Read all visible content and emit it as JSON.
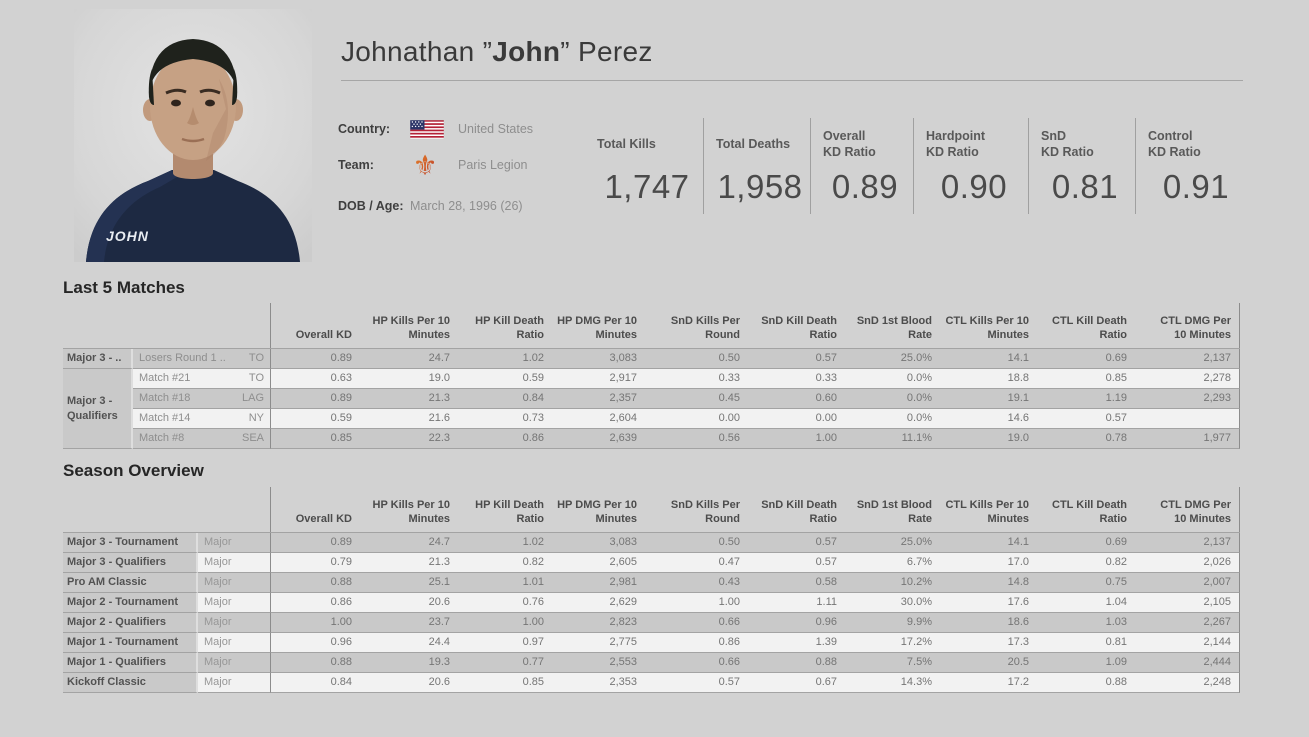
{
  "player": {
    "name_prefix": "Johnathan ”",
    "nickname_bold": "John",
    "name_suffix": "” Perez",
    "jersey_label": "JOHN"
  },
  "info": {
    "country_label": "Country:",
    "country_value": "United States",
    "country_icon": "us-flag-icon",
    "team_label": "Team:",
    "team_value": "Paris Legion",
    "team_icon": "fleur-de-lis-icon",
    "dob_label": "DOB / Age:",
    "dob_value": "March 28, 1996 (26)"
  },
  "stats": [
    {
      "label1": "Total Kills",
      "label2": "",
      "value": "1,747"
    },
    {
      "label1": "Total Deaths",
      "label2": "",
      "value": "1,958"
    },
    {
      "label1": "Overall",
      "label2": "KD Ratio",
      "value": "0.89"
    },
    {
      "label1": "Hardpoint",
      "label2": "KD Ratio",
      "value": "0.90"
    },
    {
      "label1": "SnD",
      "label2": "KD Ratio",
      "value": "0.81"
    },
    {
      "label1": "Control",
      "label2": "KD Ratio",
      "value": "0.91"
    }
  ],
  "sections": {
    "last5_title": "Last 5 Matches",
    "season_title": "Season Overview"
  },
  "columns": [
    {
      "line1": "",
      "line2": "Overall KD"
    },
    {
      "line1": "HP Kills Per 10",
      "line2": "Minutes"
    },
    {
      "line1": "HP Kill Death",
      "line2": "Ratio"
    },
    {
      "line1": "HP DMG Per 10",
      "line2": "Minutes"
    },
    {
      "line1": "SnD Kills Per",
      "line2": "Round"
    },
    {
      "line1": "SnD Kill Death",
      "line2": "Ratio"
    },
    {
      "line1": "SnD 1st Blood",
      "line2": "Rate"
    },
    {
      "line1": "CTL Kills Per 10",
      "line2": "Minutes"
    },
    {
      "line1": "CTL Kill Death",
      "line2": "Ratio"
    },
    {
      "line1": "CTL DMG Per",
      "line2": "10 Minutes"
    }
  ],
  "last5": {
    "group_row1": "Major 3 - ..",
    "group_merged_line1": "Major 3 -",
    "group_merged_line2": "Qualifiers",
    "rows": [
      {
        "match": "Losers Round 1 ..",
        "opp": "TO",
        "values": [
          "0.89",
          "24.7",
          "1.02",
          "3,083",
          "0.50",
          "0.57",
          "25.0%",
          "14.1",
          "0.69",
          "2,137"
        ]
      },
      {
        "match": "Match #21",
        "opp": "TO",
        "values": [
          "0.63",
          "19.0",
          "0.59",
          "2,917",
          "0.33",
          "0.33",
          "0.0%",
          "18.8",
          "0.85",
          "2,278"
        ]
      },
      {
        "match": "Match #18",
        "opp": "LAG",
        "values": [
          "0.89",
          "21.3",
          "0.84",
          "2,357",
          "0.45",
          "0.60",
          "0.0%",
          "19.1",
          "1.19",
          "2,293"
        ]
      },
      {
        "match": "Match #14",
        "opp": "NY",
        "values": [
          "0.59",
          "21.6",
          "0.73",
          "2,604",
          "0.00",
          "0.00",
          "0.0%",
          "14.6",
          "0.57",
          ""
        ]
      },
      {
        "match": "Match #8",
        "opp": "SEA",
        "values": [
          "0.85",
          "22.3",
          "0.86",
          "2,639",
          "0.56",
          "1.00",
          "11.1%",
          "19.0",
          "0.78",
          "1,977"
        ]
      }
    ]
  },
  "season": {
    "rows": [
      {
        "event": "Major 3 - Tournament",
        "type": "Major",
        "values": [
          "0.89",
          "24.7",
          "1.02",
          "3,083",
          "0.50",
          "0.57",
          "25.0%",
          "14.1",
          "0.69",
          "2,137"
        ]
      },
      {
        "event": "Major 3 - Qualifiers",
        "type": "Major",
        "values": [
          "0.79",
          "21.3",
          "0.82",
          "2,605",
          "0.47",
          "0.57",
          "6.7%",
          "17.0",
          "0.82",
          "2,026"
        ]
      },
      {
        "event": "Pro AM Classic",
        "type": "Major",
        "values": [
          "0.88",
          "25.1",
          "1.01",
          "2,981",
          "0.43",
          "0.58",
          "10.2%",
          "14.8",
          "0.75",
          "2,007"
        ]
      },
      {
        "event": "Major 2 - Tournament",
        "type": "Major",
        "values": [
          "0.86",
          "20.6",
          "0.76",
          "2,629",
          "1.00",
          "1.11",
          "30.0%",
          "17.6",
          "1.04",
          "2,105"
        ]
      },
      {
        "event": "Major 2 - Qualifiers",
        "type": "Major",
        "values": [
          "1.00",
          "23.7",
          "1.00",
          "2,823",
          "0.66",
          "0.96",
          "9.9%",
          "18.6",
          "1.03",
          "2,267"
        ]
      },
      {
        "event": "Major 1 - Tournament",
        "type": "Major",
        "values": [
          "0.96",
          "24.4",
          "0.97",
          "2,775",
          "0.86",
          "1.39",
          "17.2%",
          "17.3",
          "0.81",
          "2,144"
        ]
      },
      {
        "event": "Major 1 - Qualifiers",
        "type": "Major",
        "values": [
          "0.88",
          "19.3",
          "0.77",
          "2,553",
          "0.66",
          "0.88",
          "7.5%",
          "20.5",
          "1.09",
          "2,444"
        ]
      },
      {
        "event": "Kickoff Classic",
        "type": "Major",
        "values": [
          "0.84",
          "20.6",
          "0.85",
          "2,353",
          "0.57",
          "0.67",
          "14.3%",
          "17.2",
          "0.88",
          "2,248"
        ]
      }
    ]
  },
  "colors": {
    "page_bg": "#d2d2d2",
    "band_dark": "#c9c9c9",
    "band_light": "#f2f2f2",
    "divider": "#8c8c8c",
    "jersey_navy": "#1d2942",
    "team_orange": "#e07b28",
    "team_red": "#a2282e"
  }
}
